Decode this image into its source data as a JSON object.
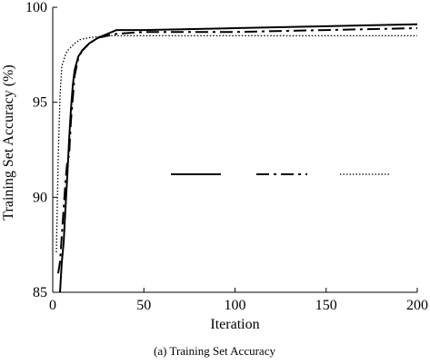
{
  "chart_data": {
    "type": "line",
    "title": "",
    "caption": "(a) Training Set Accuracy",
    "xlabel": "Iteration",
    "ylabel": "Training Set Accuracy (%)",
    "xlim": [
      0,
      200
    ],
    "ylim": [
      85,
      100
    ],
    "xticks": [
      0,
      50,
      100,
      150,
      200
    ],
    "yticks": [
      85,
      90,
      95,
      100
    ],
    "grid": false,
    "legend": "center-right",
    "series": [
      {
        "style": "solid",
        "x": [
          4,
          5,
          6,
          7,
          8,
          9,
          10,
          11,
          12,
          14,
          16,
          18,
          20,
          25,
          30,
          35,
          50,
          100,
          150,
          200
        ],
        "y": [
          85.0,
          86.6,
          87.6,
          89.4,
          91.1,
          93.0,
          94.6,
          95.9,
          96.7,
          97.4,
          97.7,
          97.9,
          98.1,
          98.4,
          98.6,
          98.8,
          98.8,
          98.9,
          99.0,
          99.1
        ]
      },
      {
        "style": "dashdot",
        "x": [
          3,
          4,
          5,
          6,
          7,
          8,
          9,
          10,
          12,
          14,
          16,
          18,
          20,
          25,
          30,
          35,
          50,
          100,
          150,
          200
        ],
        "y": [
          86.0,
          86.6,
          88.0,
          89.4,
          90.8,
          91.9,
          92.2,
          94.0,
          96.4,
          97.3,
          97.7,
          97.9,
          98.1,
          98.4,
          98.5,
          98.6,
          98.7,
          98.7,
          98.8,
          98.9
        ]
      },
      {
        "style": "dotted",
        "x": [
          2,
          3,
          4,
          5,
          6,
          7,
          8,
          10,
          12,
          15,
          20,
          30,
          50,
          100,
          150,
          200
        ],
        "y": [
          87.1,
          92.0,
          95.3,
          96.9,
          97.2,
          97.5,
          97.7,
          97.9,
          98.1,
          98.3,
          98.4,
          98.5,
          98.5,
          98.5,
          98.5,
          98.5
        ]
      }
    ]
  }
}
